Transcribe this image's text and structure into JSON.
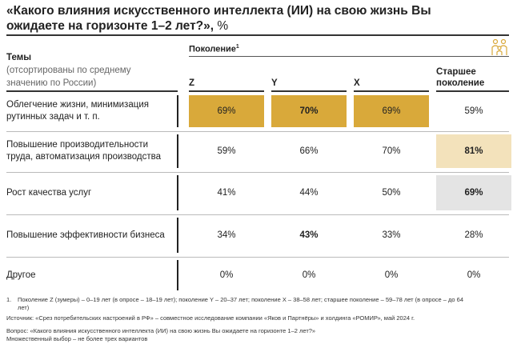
{
  "title": "«Какого влияния искусственного интеллекта (ИИ) на свою жизнь Вы ожидаете на горизонте 1–2 лет?»,",
  "title_unit": "%",
  "header": {
    "topics": "Темы",
    "topics_note": "(отсортированы по среднему значению по России)",
    "generation": "Поколение",
    "generation_sup": "1",
    "icon": "family-icon"
  },
  "chart_data": {
    "type": "table",
    "columns": [
      "Z",
      "Y",
      "X",
      "Старшее поколение"
    ],
    "rows": [
      {
        "topic": "Облегчение жизни, минимизация рутинных задач и т. п.",
        "values": [
          "69%",
          "70%",
          "69%",
          "59%"
        ]
      },
      {
        "topic": "Повышение производительности труда, автоматизация производства",
        "values": [
          "59%",
          "66%",
          "70%",
          "81%"
        ]
      },
      {
        "topic": "Рост качества услуг",
        "values": [
          "41%",
          "44%",
          "50%",
          "69%"
        ]
      },
      {
        "topic": "Повышение эффективности бизнеса",
        "values": [
          "34%",
          "43%",
          "33%",
          "28%"
        ]
      },
      {
        "topic": "Другое",
        "values": [
          "0%",
          "0%",
          "0%",
          "0%"
        ]
      }
    ],
    "bold": [
      [
        0,
        1
      ],
      [
        1,
        3
      ],
      [
        2,
        3
      ],
      [
        3,
        1
      ]
    ],
    "highlights": [
      {
        "row": 0,
        "col": 0,
        "color": "#d9a93a"
      },
      {
        "row": 0,
        "col": 1,
        "color": "#d9a93a"
      },
      {
        "row": 0,
        "col": 2,
        "color": "#d9a93a"
      },
      {
        "row": 1,
        "col": 3,
        "color": "#f3e2bb"
      },
      {
        "row": 2,
        "col": 3,
        "color": "#e4e4e4"
      }
    ]
  },
  "notes": {
    "footnote_num": "1.",
    "footnote": "Поколение Z (зумеры) – 0–19 лет (в опросе – 18–19 лет); поколение Y – 20–37 лет; поколение X – 38–58 лет; старшее поколение – 59–78 лет (в опросе – до 64 лет)",
    "source": "Источник: «Срез потребительских настроений в РФ» – совместное исследование компании «Яков и Партнёры» и холдинга «РОМИР», май 2024 г.",
    "question": "Вопрос: «Какого влияния искусственного интеллекта (ИИ) на свою жизнь Вы ожидаете на горизонте 1–2 лет?»",
    "multiple": "Множественный выбор – не более трех вариантов"
  }
}
